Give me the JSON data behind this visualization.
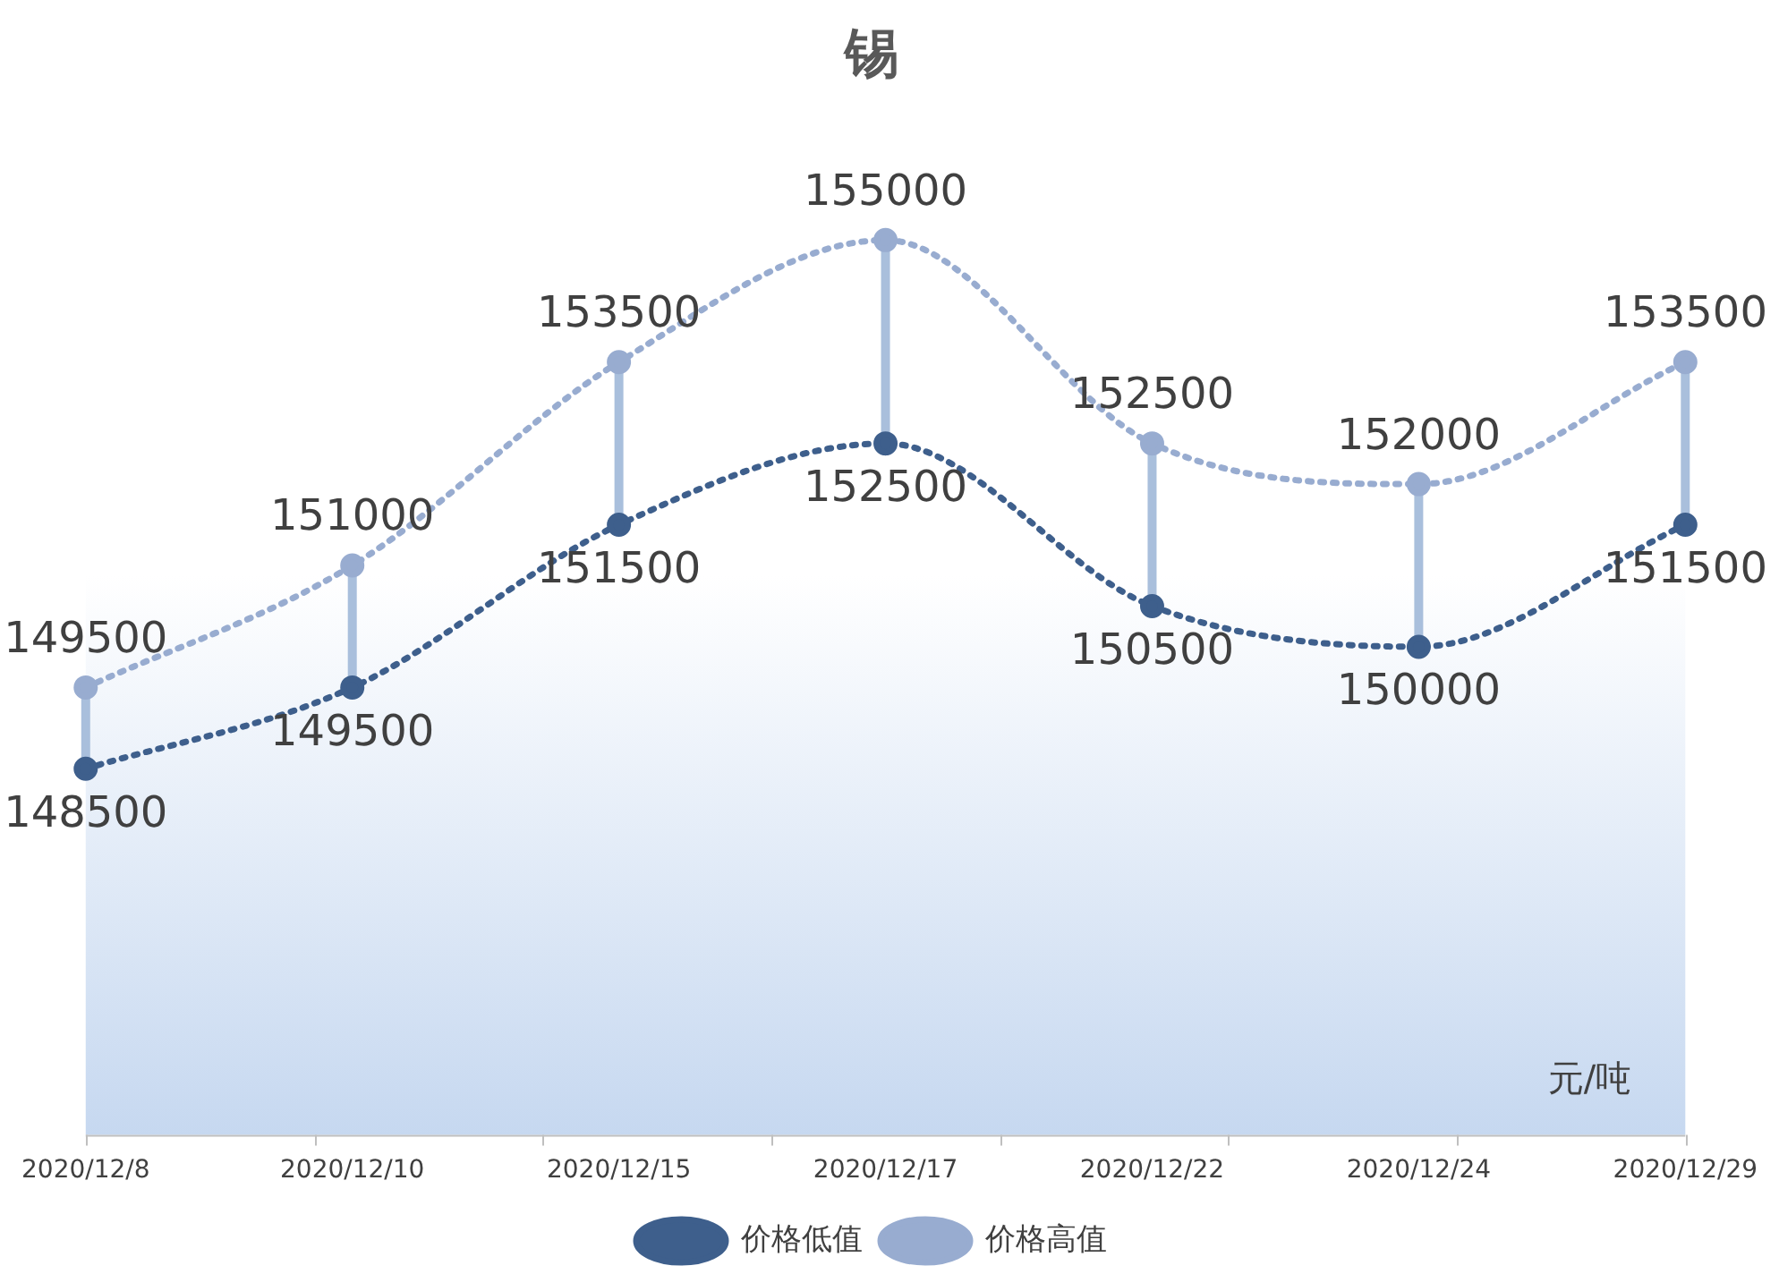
{
  "chart_data": {
    "type": "line",
    "title": "锡",
    "categories": [
      "2020/12/8",
      "2020/12/10",
      "2020/12/15",
      "2020/12/17",
      "2020/12/22",
      "2020/12/24",
      "2020/12/29"
    ],
    "series": [
      {
        "name": "价格低值",
        "color": "#3e5f8c",
        "values": [
          148500,
          149500,
          151500,
          152500,
          150500,
          150000,
          151500
        ]
      },
      {
        "name": "价格高值",
        "color": "#98acd0",
        "values": [
          149500,
          151000,
          153500,
          155000,
          152500,
          152000,
          153500
        ]
      }
    ],
    "ylim": [
      144000,
      156500
    ],
    "tick_labels": "x",
    "grid": false,
    "legend": "bottom",
    "marker": "circle",
    "line_style": "dotted",
    "data_labels": true,
    "annotations": [
      "元/吨"
    ]
  }
}
